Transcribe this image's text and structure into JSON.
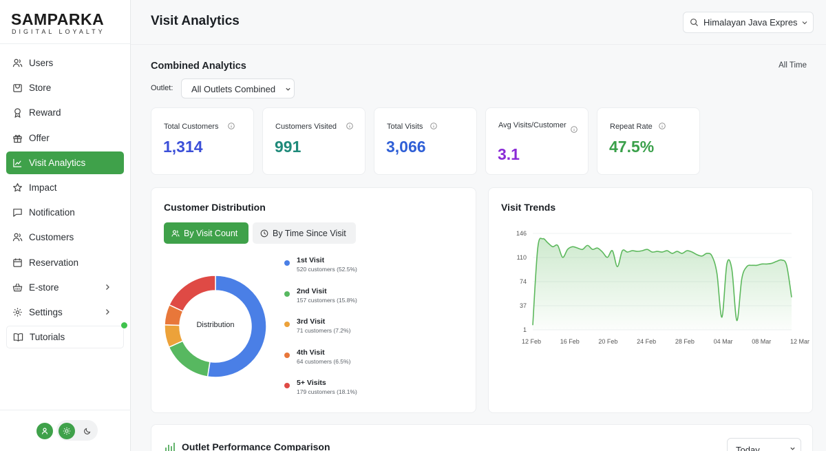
{
  "sidebar": {
    "brand": "SAMPARKA",
    "tagline": "DIGITAL LOYALTY",
    "items": [
      {
        "label": "Users"
      },
      {
        "label": "Store"
      },
      {
        "label": "Reward"
      },
      {
        "label": "Offer"
      },
      {
        "label": "Visit Analytics"
      },
      {
        "label": "Impact"
      },
      {
        "label": "Notification"
      },
      {
        "label": "Customers"
      },
      {
        "label": "Reservation"
      },
      {
        "label": "E-store"
      },
      {
        "label": "Settings"
      },
      {
        "label": "Tutorials"
      }
    ]
  },
  "header": {
    "title": "Visit Analytics",
    "store_select": "Himalayan Java Expres"
  },
  "combined": {
    "title": "Combined Analytics",
    "period": "All Time",
    "outlet_label": "Outlet:",
    "outlet_value": "All Outlets Combined"
  },
  "stats": [
    {
      "label": "Total Customers",
      "value": "1,314",
      "color": "#3b4fd8"
    },
    {
      "label": "Customers Visited",
      "value": "991",
      "color": "#1f8a7a"
    },
    {
      "label": "Total Visits",
      "value": "3,066",
      "color": "#2f5fd6"
    },
    {
      "label": "Avg Visits/Customer",
      "value": "3.1",
      "color": "#8a2bd6"
    },
    {
      "label": "Repeat Rate",
      "value": "47.5%",
      "color": "#3aa04a"
    }
  ],
  "distribution": {
    "title": "Customer Distribution",
    "tab_visit_count": "By Visit Count",
    "tab_time_since": "By Time Since Visit",
    "center_label": "Distribution",
    "chart_data": {
      "type": "pie",
      "categories": [
        "1st Visit",
        "2nd Visit",
        "3rd Visit",
        "4th Visit",
        "5+ Visits"
      ],
      "values": [
        520,
        157,
        71,
        64,
        179
      ],
      "colors": [
        "#4a7fe6",
        "#57b860",
        "#eca23a",
        "#e8773a",
        "#df4a45"
      ]
    },
    "legend": [
      {
        "name": "1st Visit",
        "sub": "520 customers (52.5%)"
      },
      {
        "name": "2nd Visit",
        "sub": "157 customers (15.8%)"
      },
      {
        "name": "3rd Visit",
        "sub": "71 customers (7.2%)"
      },
      {
        "name": "4th Visit",
        "sub": "64 customers (6.5%)"
      },
      {
        "name": "5+ Visits",
        "sub": "179 customers (18.1%)"
      }
    ]
  },
  "trends": {
    "title": "Visit Trends",
    "chart_data": {
      "type": "area",
      "yticks": [
        "146",
        "110",
        "74",
        "37",
        "1"
      ],
      "xticks": [
        "12 Feb",
        "16 Feb",
        "20 Feb",
        "24 Feb",
        "28 Feb",
        "04 Mar",
        "08 Mar",
        "12 Mar"
      ],
      "ylim": [
        1,
        146
      ],
      "values": [
        8,
        124,
        138,
        132,
        126,
        128,
        110,
        122,
        126,
        124,
        122,
        128,
        122,
        124,
        118,
        110,
        120,
        96,
        120,
        118,
        120,
        119,
        120,
        122,
        118,
        119,
        118,
        120,
        116,
        119,
        116,
        120,
        118,
        114,
        112,
        116,
        112,
        86,
        20,
        100,
        92,
        15,
        78,
        96,
        98,
        98,
        100,
        100,
        101,
        104,
        106,
        98,
        50
      ],
      "color": "#5cb85c"
    }
  },
  "performance": {
    "title": "Outlet Performance Comparison",
    "period": "Today"
  }
}
